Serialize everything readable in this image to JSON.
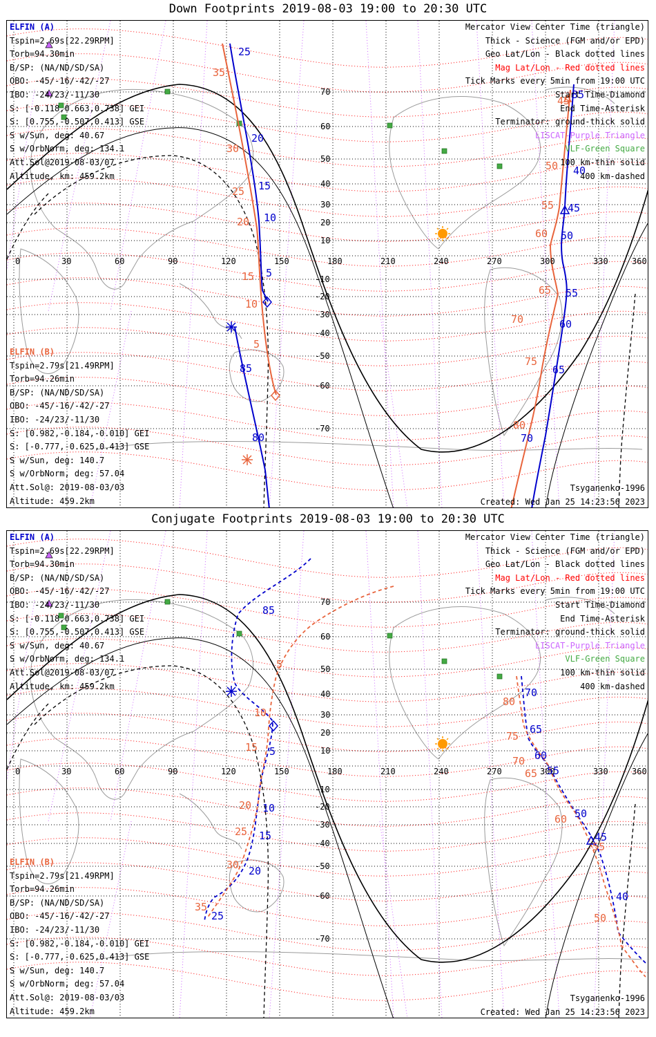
{
  "colors": {
    "blue": "#0000cc",
    "red": "#e8643c",
    "geo": "#000000",
    "mag": "#ff0000",
    "magenta": "#cc66ff",
    "vlf": "#44aa44",
    "sun": "#ff9900",
    "coast": "#9a9a9a"
  },
  "lon_labels": [
    "0",
    "30",
    "60",
    "90",
    "120",
    "150",
    "180",
    "210",
    "240",
    "270",
    "300",
    "330",
    "360"
  ],
  "panels": [
    {
      "id": "down",
      "title": "Down Footprints 2019-08-03 19:00 to 20:30 UTC",
      "legend": [
        "Mercator View Center Time (triangle)",
        "Thick - Science (FGM and/or EPD)",
        "Geo Lat/Lon - Black dotted lines",
        "Mag Lat/Lon - Red dotted lines",
        "Tick Marks every 5min from 19:00 UTC",
        "Start Time-Diamond",
        "End Time-Asterisk",
        "Terminator: ground-thick solid",
        "LISCAT-Purple Triangle",
        "VLF-Green Square",
        "100 km-thin solid",
        "400 km-dashed"
      ],
      "lat_labels": [
        "70",
        "60",
        "50",
        "40",
        "30",
        "20",
        "10",
        "-10",
        "-20",
        "-30",
        "-40",
        "-50",
        "-60",
        "-70"
      ],
      "info_a": [
        "ELFIN (A)",
        "Tspin=2.69s[22.29RPM]",
        "Torb=94.30min",
        "B/SP: (NA/ND/SD/SA)",
        "OBO: -45/-16/-42/-27",
        "IBO: -24/23/-11/30",
        "S: [-0.118,0.663,0.738] GEI",
        "S: [0.755,-0.507,0.413] GSE",
        "S w/Sun, deg: 40.67",
        "S w/OrbNorm, deg: 134.1",
        "Att.Sol@2019-08-03/07",
        "Altitude, km: 459.2km"
      ],
      "info_b": [
        "ELFIN (B)",
        "Tspin=2.79s[21.49RPM]",
        "Torb=94.26min",
        "B/SP: (NA/ND/SD/SA)",
        "OBO: -45/-16/-42/-27",
        "IBO: -24/23/-11/30",
        "S: [0.982,-0.184,-0.010] GEI",
        "S: [-0.777,-0.625,0.413] GSE",
        "S w/Sun, deg: 140.7",
        "S w/OrbNorm, deg: 57.04",
        "Att.Sol@: 2019-08-03/03",
        "Altitude: 459.2km"
      ],
      "footer_right": [
        "Tsyganenko-1996",
        "Created: Wed Jan 25 14:23:56 2023"
      ],
      "track_labels": [
        {
          "t": "25",
          "c": "blue"
        },
        {
          "t": "20",
          "c": "blue"
        },
        {
          "t": "15",
          "c": "blue"
        },
        {
          "t": "10",
          "c": "blue"
        },
        {
          "t": "5",
          "c": "blue"
        },
        {
          "t": "85",
          "c": "blue"
        },
        {
          "t": "80",
          "c": "blue"
        },
        {
          "t": "35",
          "c": "red"
        },
        {
          "t": "30",
          "c": "red"
        },
        {
          "t": "25",
          "c": "red"
        },
        {
          "t": "20",
          "c": "red"
        },
        {
          "t": "15",
          "c": "red"
        },
        {
          "t": "10",
          "c": "red"
        },
        {
          "t": "5",
          "c": "red"
        },
        {
          "t": "35",
          "c": "blue"
        },
        {
          "t": "40",
          "c": "blue"
        },
        {
          "t": "45",
          "c": "blue"
        },
        {
          "t": "50",
          "c": "blue"
        },
        {
          "t": "55",
          "c": "blue"
        },
        {
          "t": "60",
          "c": "blue"
        },
        {
          "t": "65",
          "c": "blue"
        },
        {
          "t": "70",
          "c": "blue"
        },
        {
          "t": "45",
          "c": "red"
        },
        {
          "t": "50",
          "c": "red"
        },
        {
          "t": "55",
          "c": "red"
        },
        {
          "t": "60",
          "c": "red"
        },
        {
          "t": "65",
          "c": "red"
        },
        {
          "t": "70",
          "c": "red"
        },
        {
          "t": "75",
          "c": "red"
        },
        {
          "t": "80",
          "c": "red"
        }
      ]
    },
    {
      "id": "conj",
      "title": "Conjugate Footprints 2019-08-03 19:00 to 20:30 UTC",
      "legend": [
        "Mercator View Center Time (triangle)",
        "Thick - Science (FGM and/or EPD)",
        "Geo Lat/Lon - Black dotted lines",
        "Mag Lat/Lon - Red dotted lines",
        "Tick Marks every 5min from 19:00 UTC",
        "Start Time-Diamond",
        "End Time-Asterisk",
        "Terminator: ground-thick solid",
        "LISCAT-Purple Triangle",
        "VLF-Green Square",
        "100 km-thin solid",
        "400 km-dashed"
      ],
      "lat_labels": [
        "70",
        "60",
        "50",
        "40",
        "30",
        "20",
        "10",
        "-10",
        "-20",
        "-30",
        "-40",
        "-50",
        "-60",
        "-70"
      ],
      "info_a": [
        "ELFIN (A)",
        "Tspin=2.69s[22.29RPM]",
        "Torb=94.30min",
        "B/SP: (NA/ND/SD/SA)",
        "OBO: -45/-16/-42/-27",
        "IBO: -24/23/-11/30",
        "S: [-0.118,0.663,0.738] GEI",
        "S: [0.755,-0.507,0.413] GSE",
        "S w/Sun, deg: 40.67",
        "S w/OrbNorm, deg: 134.1",
        "Att.Sol@2019-08-03/07",
        "Altitude, km: 459.2km"
      ],
      "info_b": [
        "ELFIN (B)",
        "Tspin=2.79s[21.49RPM]",
        "Torb=94.26min",
        "B/SP: (NA/ND/SD/SA)",
        "OBO: -45/-16/-42/-27",
        "IBO: -24/23/-11/30",
        "S: [0.982,-0.184,-0.010] GEI",
        "S: [-0.777,-0.625,0.413] GSE",
        "S w/Sun, deg: 140.7",
        "S w/OrbNorm, deg: 57.04",
        "Att.Sol@: 2019-08-03/03",
        "Altitude: 459.2km"
      ],
      "footer_right": [
        "Tsyganenko-1996",
        "Created: Wed Jan 25 14:23:56 2023"
      ],
      "track_labels": [
        {
          "t": "85",
          "c": "blue"
        },
        {
          "t": "5",
          "c": "blue"
        },
        {
          "t": "10",
          "c": "blue"
        },
        {
          "t": "15",
          "c": "blue"
        },
        {
          "t": "20",
          "c": "blue"
        },
        {
          "t": "25",
          "c": "blue"
        },
        {
          "t": "5",
          "c": "red"
        },
        {
          "t": "10",
          "c": "red"
        },
        {
          "t": "15",
          "c": "red"
        },
        {
          "t": "20",
          "c": "red"
        },
        {
          "t": "25",
          "c": "red"
        },
        {
          "t": "30",
          "c": "red"
        },
        {
          "t": "35",
          "c": "red"
        },
        {
          "t": "70",
          "c": "blue"
        },
        {
          "t": "65",
          "c": "blue"
        },
        {
          "t": "60",
          "c": "blue"
        },
        {
          "t": "55",
          "c": "blue"
        },
        {
          "t": "50",
          "c": "blue"
        },
        {
          "t": "45",
          "c": "blue"
        },
        {
          "t": "40",
          "c": "blue"
        },
        {
          "t": "80",
          "c": "red"
        },
        {
          "t": "75",
          "c": "red"
        },
        {
          "t": "70",
          "c": "red"
        },
        {
          "t": "65",
          "c": "red"
        },
        {
          "t": "60",
          "c": "red"
        },
        {
          "t": "55",
          "c": "red"
        },
        {
          "t": "50",
          "c": "red"
        }
      ]
    }
  ]
}
